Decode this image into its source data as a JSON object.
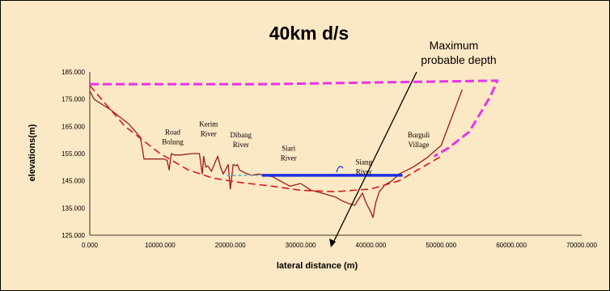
{
  "chart_data": {
    "type": "line",
    "title": "40km d/s",
    "xlabel": "lateral distance (m)",
    "ylabel": "elevations(m)",
    "xlim": [
      0,
      70000
    ],
    "ylim": [
      125,
      185
    ],
    "x_ticks": [
      "0.000",
      "10000.000",
      "20000.000",
      "30000.000",
      "40000.000",
      "50000.000",
      "60000.000",
      "70000.000"
    ],
    "y_ticks": [
      "125.000",
      "135.000",
      "145.000",
      "155.000",
      "165.000",
      "175.000",
      "185.000"
    ],
    "annotation": {
      "text_line1": "Maximum",
      "text_line2": "probable depth"
    },
    "place_labels": [
      {
        "lines": [
          "Road",
          "Bolung"
        ],
        "x": 11800,
        "y": 162
      },
      {
        "lines": [
          "Kerim",
          "River"
        ],
        "x": 16900,
        "y": 165
      },
      {
        "lines": [
          "Dibang",
          "River"
        ],
        "x": 21500,
        "y": 161
      },
      {
        "lines": [
          "Siari",
          "River"
        ],
        "x": 28300,
        "y": 156
      },
      {
        "lines": [
          "Siang",
          "River"
        ],
        "x": 39000,
        "y": 151
      },
      {
        "lines": [
          "Burguli",
          "Village"
        ],
        "x": 46800,
        "y": 161
      }
    ],
    "series": [
      {
        "color": "#9b1c1c",
        "style": "solid",
        "x": [
          0,
          600,
          3000,
          5500,
          7200,
          7600,
          7700,
          8200,
          9500,
          10500,
          11000,
          11300,
          11600,
          12000,
          13000,
          14500,
          15600,
          16000,
          16200,
          16500,
          16800,
          17300,
          18200,
          18600,
          19000,
          19700,
          20000,
          20400,
          20800,
          21000,
          21300,
          22000,
          23000,
          24000,
          26000,
          28500,
          30000,
          31500,
          33000,
          35000,
          36000,
          37000,
          37700,
          38300,
          38800,
          39300,
          40000,
          40300,
          40700,
          41200,
          42000,
          43000,
          44000,
          46000,
          48000,
          50000,
          53000
        ],
        "y": [
          178,
          175,
          171,
          166,
          161,
          155,
          153,
          153,
          153,
          153,
          152.5,
          149,
          155,
          154.5,
          154.5,
          155,
          155,
          147.5,
          154,
          150,
          150.5,
          148.5,
          154,
          150,
          147.5,
          151,
          142,
          151,
          150.5,
          151,
          149,
          148,
          147,
          147.5,
          146.5,
          143,
          144,
          141.5,
          140.5,
          139,
          137.5,
          136.5,
          136,
          138.5,
          140.5,
          137,
          133.5,
          131.5,
          137,
          141,
          143.5,
          145,
          147.5,
          150,
          153.5,
          158,
          178.5
        ]
      },
      {
        "color": "#d41c1c",
        "style": "dashed",
        "x": [
          0,
          5000,
          10000,
          14000,
          17500,
          21000,
          26000,
          30000,
          35000,
          40000,
          44000,
          48000,
          50000
        ],
        "y": [
          180,
          165,
          155,
          149,
          146,
          144.5,
          143,
          141.5,
          141,
          142,
          145,
          151,
          154
        ]
      },
      {
        "color": "#e833e8",
        "style": "dashed",
        "x": [
          0,
          25000,
          50000,
          58000,
          57000,
          54000,
          51000,
          49000
        ],
        "y": [
          180.5,
          180.5,
          181.5,
          181.8,
          176,
          163,
          157,
          154
        ]
      },
      {
        "color": "#1a2fe0",
        "style": "solid",
        "x": [
          24500,
          44500
        ],
        "y": [
          147,
          147
        ]
      },
      {
        "color": "#55aacc",
        "style": "dashed",
        "x": [
          19500,
          24500
        ],
        "y": [
          147,
          147
        ]
      }
    ]
  }
}
